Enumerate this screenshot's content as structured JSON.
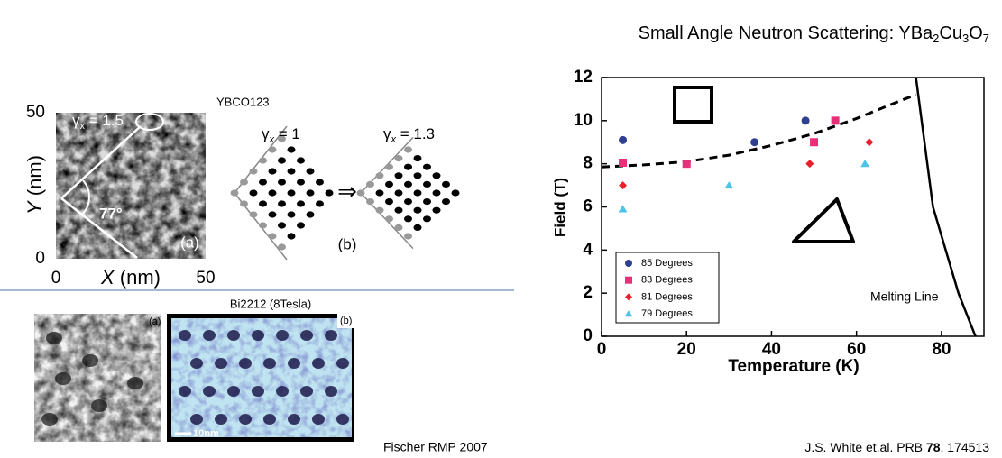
{
  "slide": {
    "title_parts": [
      "Small Angle Neutron Scattering: YBa",
      "2",
      "Cu",
      "3",
      "O",
      "7"
    ],
    "credit_parts": [
      "J.S. White et.al. PRB ",
      "78",
      ", 174513"
    ],
    "left_credit": "Fischer RMP 2007"
  },
  "stm": {
    "label": "YBCO123",
    "y_axis": [
      "Y",
      " (nm)"
    ],
    "x_axis": [
      "X",
      " (nm)"
    ],
    "y_ticks": [
      "50",
      "0"
    ],
    "x_ticks": [
      "0",
      "50"
    ],
    "gamma": [
      "γ",
      "x",
      " = 1.5"
    ],
    "angle": "77°",
    "panel": "(a)"
  },
  "lattice": {
    "left": [
      "γ",
      "x",
      " = 1"
    ],
    "right": [
      "γ",
      "x",
      " = 1.3"
    ],
    "arrow": "⇒",
    "panel": "(b)"
  },
  "bi2212": {
    "label": "Bi2212 (8Tesla)",
    "panel_a": "(a)",
    "panel_b": "(b)",
    "scale": "10nm"
  },
  "chart_data": {
    "type": "scatter",
    "x_label": "Temperature (K)",
    "y_label": "Field (T)",
    "xlim": [
      0,
      90
    ],
    "xticks": [
      0,
      20,
      40,
      60,
      80
    ],
    "ylim": [
      0,
      12
    ],
    "yticks": [
      0,
      2,
      4,
      6,
      8,
      10,
      12
    ],
    "legend": "lower-left",
    "series": [
      {
        "name": "85 Degrees",
        "color": "#2f3f8f",
        "marker": "circle",
        "x": [
          5,
          36,
          48
        ],
        "values": [
          9.1,
          9.0,
          10.0
        ]
      },
      {
        "name": "83 Degrees",
        "color": "#e8307a",
        "marker": "square",
        "x": [
          5,
          20,
          50,
          55
        ],
        "values": [
          8.05,
          8.0,
          9.0,
          10.0
        ]
      },
      {
        "name": "81 Degrees",
        "color": "#e8202a",
        "marker": "diamond",
        "x": [
          5,
          49,
          63
        ],
        "values": [
          7.0,
          8.0,
          9.0
        ]
      },
      {
        "name": "79 Degrees",
        "color": "#4cc3e8",
        "marker": "triangle",
        "x": [
          5,
          30,
          62
        ],
        "values": [
          5.9,
          7.0,
          8.0
        ]
      }
    ],
    "curves": [
      {
        "dashed": true,
        "x": [
          0,
          10,
          20,
          30,
          40,
          50,
          60,
          70,
          74
        ],
        "values": [
          7.85,
          7.95,
          8.1,
          8.4,
          8.85,
          9.4,
          10.1,
          10.9,
          11.2
        ]
      },
      {
        "name": "Melting Line",
        "dashed": false,
        "x": [
          74,
          76,
          78,
          81,
          84,
          88
        ],
        "values": [
          12,
          9,
          6,
          4,
          2,
          0
        ]
      }
    ]
  }
}
